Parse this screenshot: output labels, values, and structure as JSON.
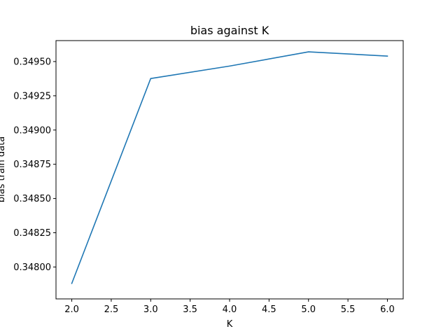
{
  "chart_data": {
    "type": "line",
    "title": "bias against K",
    "xlabel": "K",
    "ylabel": "bias train data",
    "x": [
      2,
      3,
      4,
      5,
      6
    ],
    "series": [
      {
        "values": [
          0.34788,
          0.349376,
          0.349467,
          0.349571,
          0.34954
        ],
        "color": "#1f77b4"
      }
    ],
    "xlim": [
      1.8,
      6.2
    ],
    "ylim": [
      0.347767,
      0.349653
    ],
    "xticks": [
      "2.0",
      "2.5",
      "3.0",
      "3.5",
      "4.0",
      "4.5",
      "5.0",
      "5.5",
      "6.0"
    ],
    "xtick_values": [
      2.0,
      2.5,
      3.0,
      3.5,
      4.0,
      4.5,
      5.0,
      5.5,
      6.0
    ],
    "yticks": [
      "0.34800",
      "0.34825",
      "0.34850",
      "0.34875",
      "0.34900",
      "0.34925",
      "0.34950"
    ],
    "ytick_values": [
      0.348,
      0.34825,
      0.3485,
      0.34875,
      0.349,
      0.34925,
      0.3495
    ],
    "grid": false,
    "legend": "none"
  }
}
